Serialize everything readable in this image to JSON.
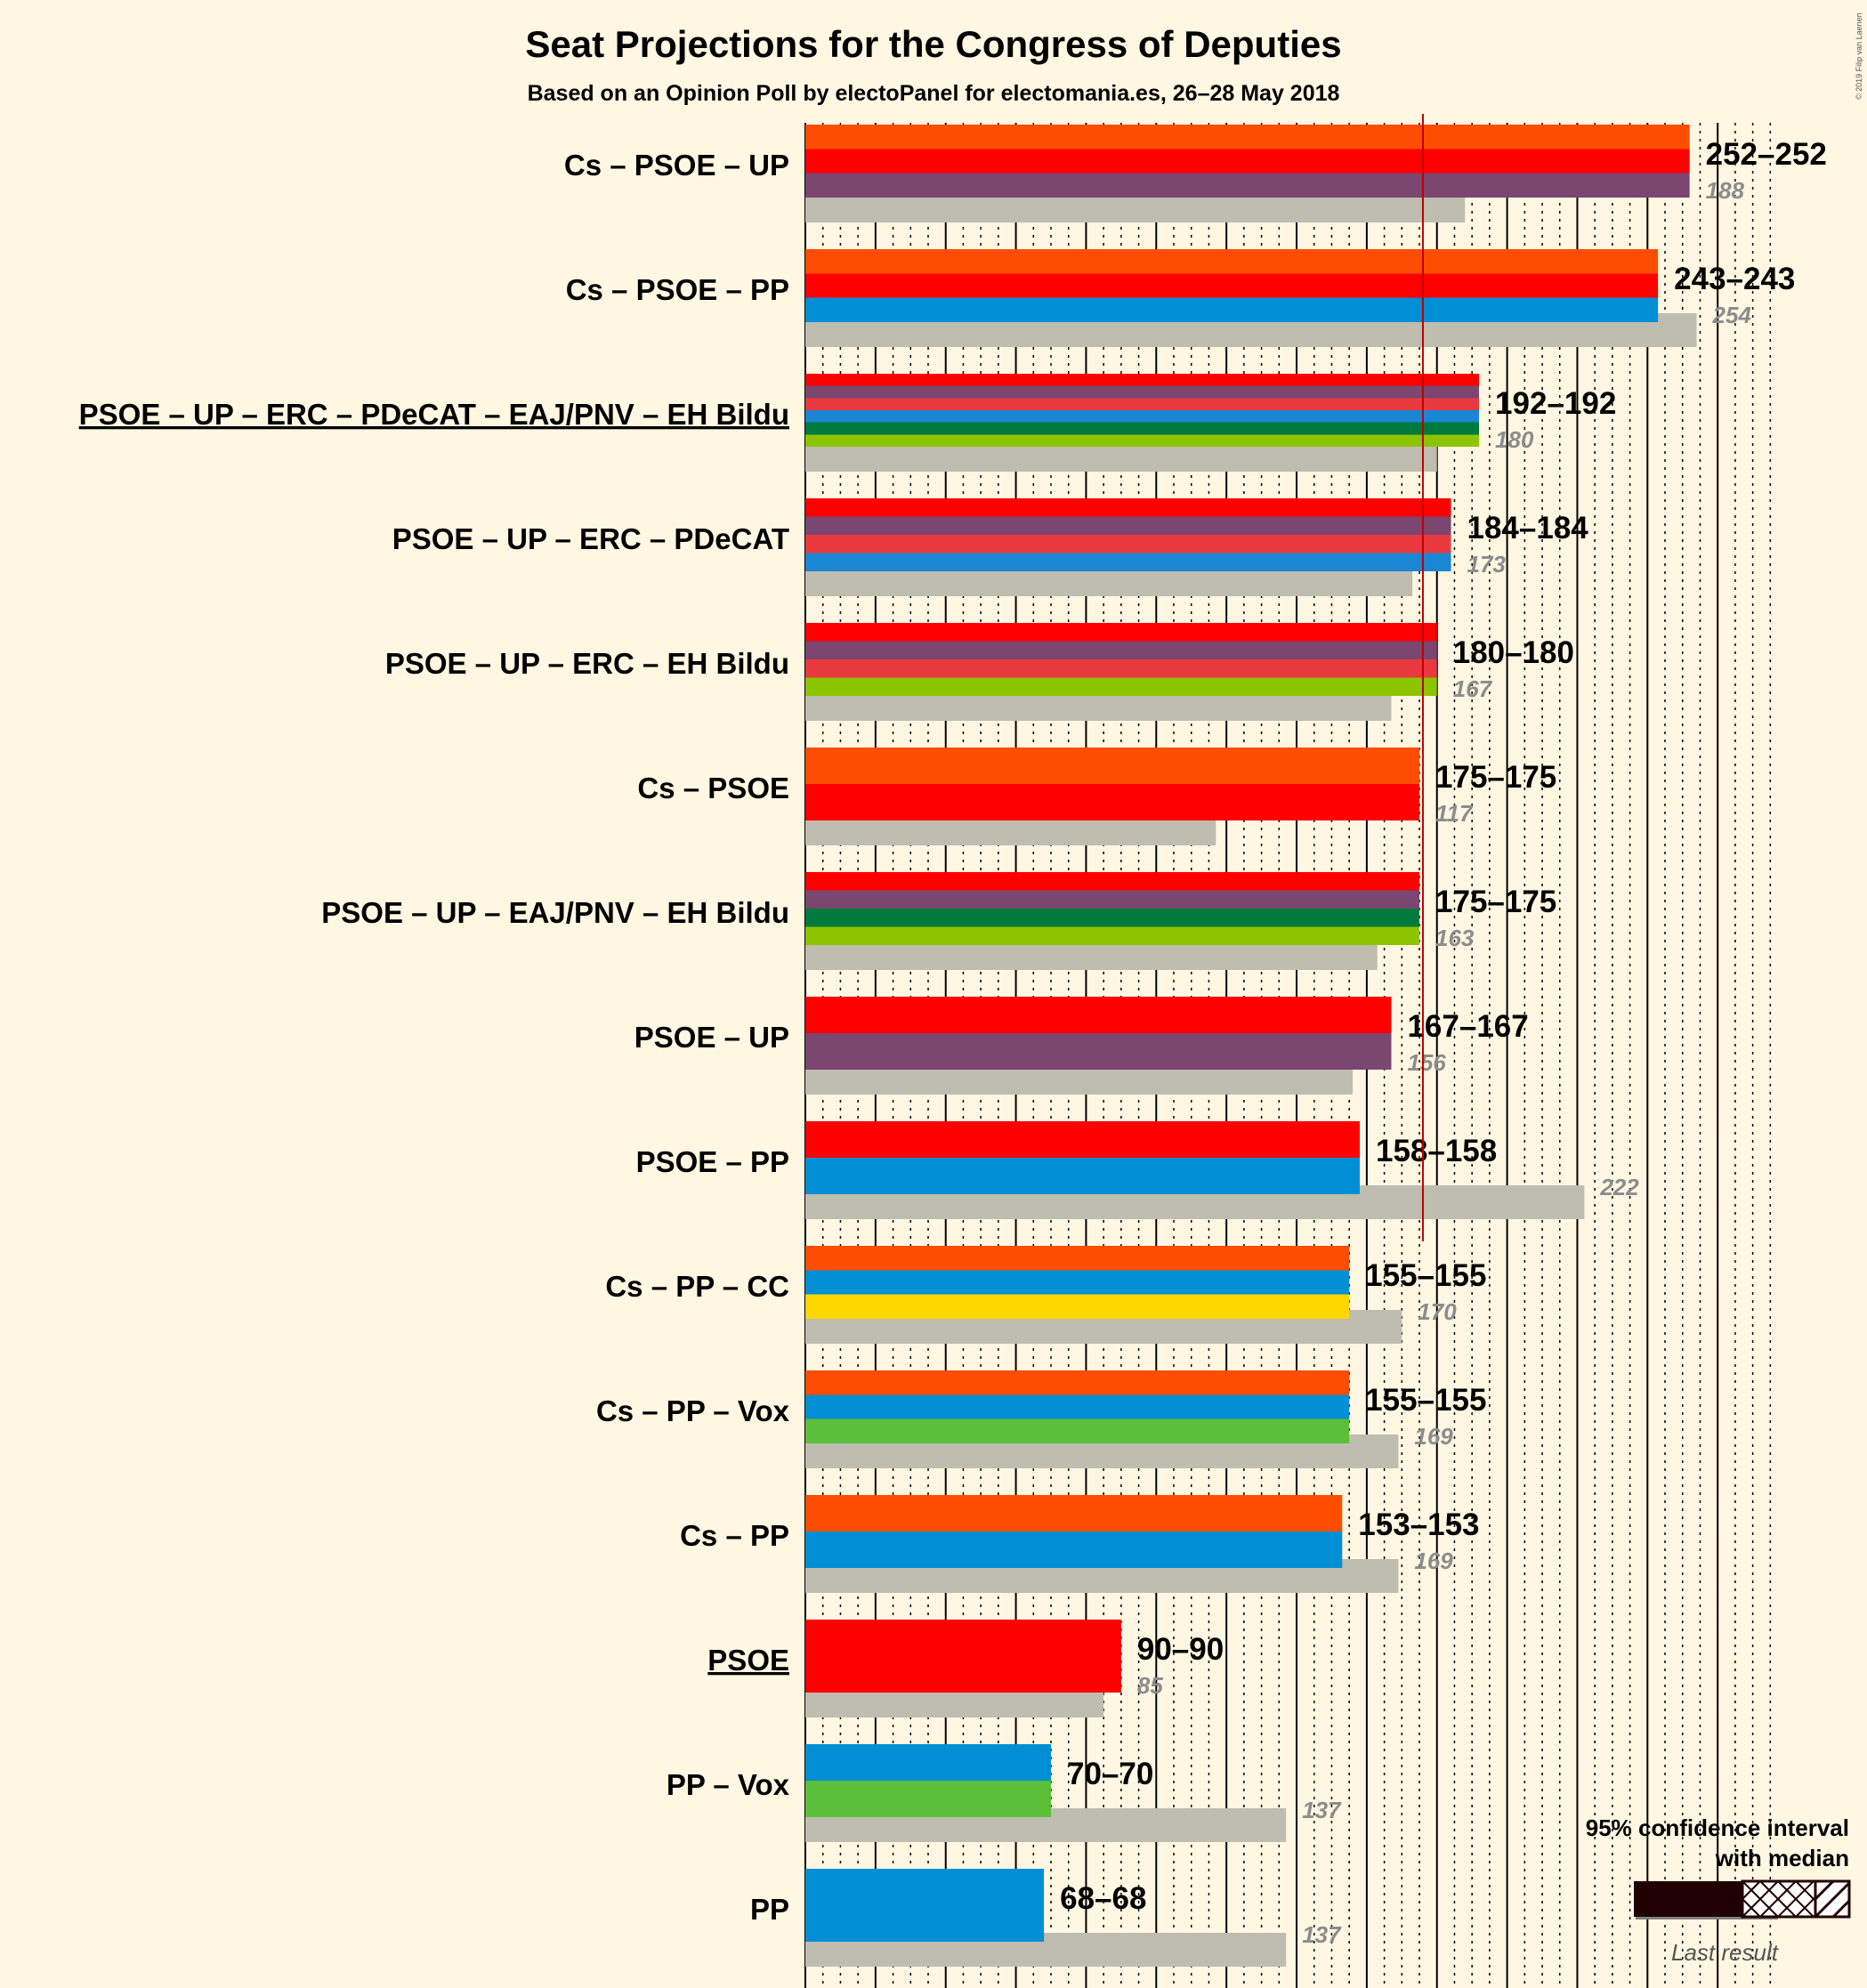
{
  "title": "Seat Projections for the Congress of Deputies",
  "subtitle": "Based on an Opinion Poll by electoPanel for electomania.es, 26–28 May 2018",
  "copyright": "© 2019 Filip van Laenen",
  "majority": 176,
  "legend": {
    "title_line1": "95% confidence interval",
    "title_line2": "with median",
    "last_result": "Last result"
  },
  "party_colors": {
    "Cs": "#ff4d00",
    "PSOE": "#ff0000",
    "UP": "#7b4670",
    "PP": "#008fd5",
    "ERC": "#e8393f",
    "PDeCAT": "#1a86d4",
    "EAJ/PNV": "#007a3d",
    "EH Bildu": "#8dc400",
    "CC": "#ffd700",
    "Vox": "#5bbf3a"
  },
  "chart_data": {
    "type": "bar",
    "title": "Seat Projections for the Congress of Deputies",
    "subtitle": "Based on an Opinion Poll by electoPanel for electomania.es, 26–28 May 2018",
    "xlim": [
      0,
      275
    ],
    "majority_line": 176,
    "series": [
      {
        "name": "Projection",
        "values": [
          252,
          243,
          192,
          184,
          180,
          175,
          175,
          167,
          158,
          155,
          155,
          153,
          90,
          70,
          68
        ]
      },
      {
        "name": "Last result",
        "values": [
          188,
          254,
          180,
          173,
          167,
          117,
          163,
          156,
          222,
          170,
          169,
          169,
          85,
          137,
          137
        ]
      }
    ],
    "categories": [
      "Cs – PSOE – UP",
      "Cs – PSOE – PP",
      "PSOE – UP – ERC – PDeCAT – EAJ/PNV – EH Bildu",
      "PSOE – UP – ERC – PDeCAT",
      "PSOE – UP – ERC – EH Bildu",
      "Cs – PSOE",
      "PSOE – UP – EAJ/PNV – EH Bildu",
      "PSOE – UP",
      "PSOE – PP",
      "Cs – PP – CC",
      "Cs – PP – Vox",
      "Cs – PP",
      "PSOE",
      "PP – Vox",
      "PP"
    ],
    "rows": [
      {
        "label": "Cs – PSOE – UP",
        "parties": [
          "Cs",
          "PSOE",
          "UP"
        ],
        "low": 252,
        "high": 252,
        "range_label": "252–252",
        "last": 188,
        "last_label": "188",
        "underline": false
      },
      {
        "label": "Cs – PSOE – PP",
        "parties": [
          "Cs",
          "PSOE",
          "PP"
        ],
        "low": 243,
        "high": 243,
        "range_label": "243–243",
        "last": 254,
        "last_label": "254",
        "underline": false
      },
      {
        "label": "PSOE – UP – ERC – PDeCAT – EAJ/PNV – EH Bildu",
        "parties": [
          "PSOE",
          "UP",
          "ERC",
          "PDeCAT",
          "EAJ/PNV",
          "EH Bildu"
        ],
        "low": 192,
        "high": 192,
        "range_label": "192–192",
        "last": 180,
        "last_label": "180",
        "underline": true
      },
      {
        "label": "PSOE – UP – ERC – PDeCAT",
        "parties": [
          "PSOE",
          "UP",
          "ERC",
          "PDeCAT"
        ],
        "low": 184,
        "high": 184,
        "range_label": "184–184",
        "last": 173,
        "last_label": "173",
        "underline": false
      },
      {
        "label": "PSOE – UP – ERC – EH Bildu",
        "parties": [
          "PSOE",
          "UP",
          "ERC",
          "EH Bildu"
        ],
        "low": 180,
        "high": 180,
        "range_label": "180–180",
        "last": 167,
        "last_label": "167",
        "underline": false
      },
      {
        "label": "Cs – PSOE",
        "parties": [
          "Cs",
          "PSOE"
        ],
        "low": 175,
        "high": 175,
        "range_label": "175–175",
        "last": 117,
        "last_label": "117",
        "underline": false
      },
      {
        "label": "PSOE – UP – EAJ/PNV – EH Bildu",
        "parties": [
          "PSOE",
          "UP",
          "EAJ/PNV",
          "EH Bildu"
        ],
        "low": 175,
        "high": 175,
        "range_label": "175–175",
        "last": 163,
        "last_label": "163",
        "underline": false
      },
      {
        "label": "PSOE – UP",
        "parties": [
          "PSOE",
          "UP"
        ],
        "low": 167,
        "high": 167,
        "range_label": "167–167",
        "last": 156,
        "last_label": "156",
        "underline": false
      },
      {
        "label": "PSOE – PP",
        "parties": [
          "PSOE",
          "PP"
        ],
        "low": 158,
        "high": 158,
        "range_label": "158–158",
        "last": 222,
        "last_label": "222",
        "underline": false
      },
      {
        "label": "Cs – PP – CC",
        "parties": [
          "Cs",
          "PP",
          "CC"
        ],
        "low": 155,
        "high": 155,
        "range_label": "155–155",
        "last": 170,
        "last_label": "170",
        "underline": false
      },
      {
        "label": "Cs – PP – Vox",
        "parties": [
          "Cs",
          "PP",
          "Vox"
        ],
        "low": 155,
        "high": 155,
        "range_label": "155–155",
        "last": 169,
        "last_label": "169",
        "underline": false
      },
      {
        "label": "Cs – PP",
        "parties": [
          "Cs",
          "PP"
        ],
        "low": 153,
        "high": 153,
        "range_label": "153–153",
        "last": 169,
        "last_label": "169",
        "underline": false
      },
      {
        "label": "PSOE",
        "parties": [
          "PSOE"
        ],
        "low": 90,
        "high": 90,
        "range_label": "90–90",
        "last": 85,
        "last_label": "85",
        "underline": true
      },
      {
        "label": "PP – Vox",
        "parties": [
          "PP",
          "Vox"
        ],
        "low": 70,
        "high": 70,
        "range_label": "70–70",
        "last": 137,
        "last_label": "137",
        "underline": false
      },
      {
        "label": "PP",
        "parties": [
          "PP"
        ],
        "low": 68,
        "high": 68,
        "range_label": "68–68",
        "last": 137,
        "last_label": "137",
        "underline": false
      }
    ]
  }
}
